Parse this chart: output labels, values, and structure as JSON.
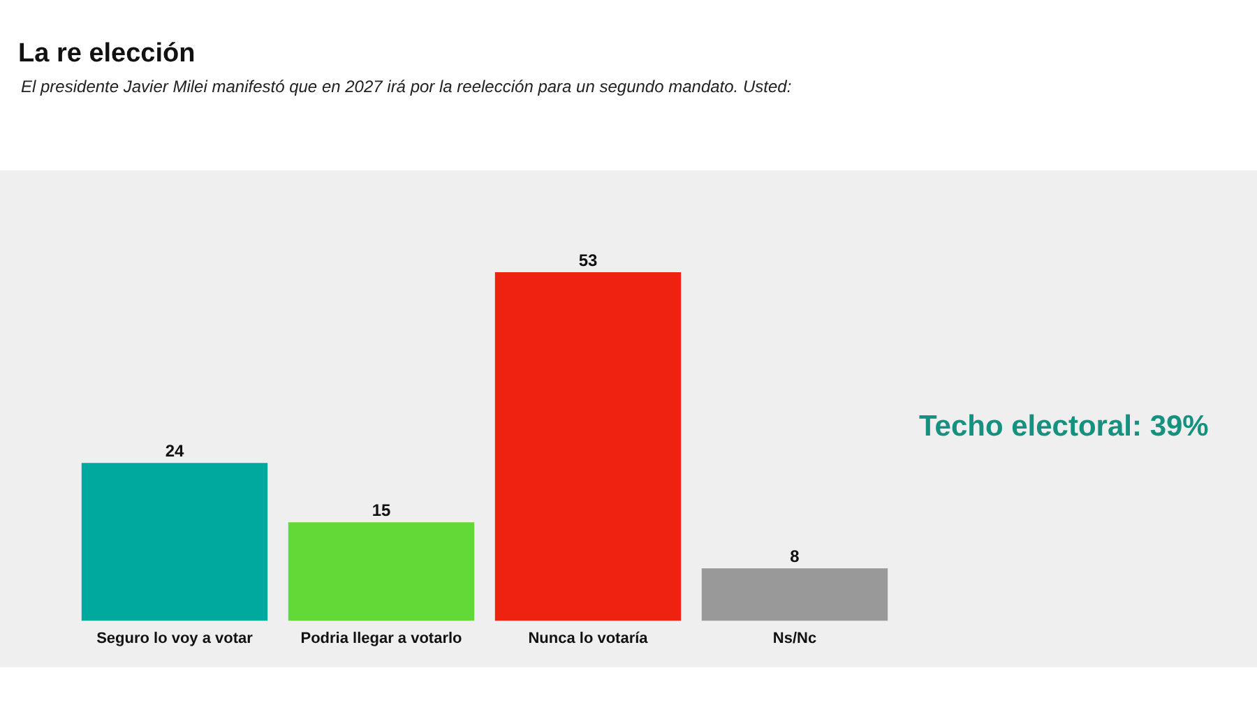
{
  "chart_data": {
    "type": "bar",
    "title": "La re elección",
    "subtitle": "El presidente Javier Milei manifestó que en 2027 irá por la reelección para un segundo mandato. Usted:",
    "categories": [
      "Seguro lo voy a votar",
      "Podria llegar a votarlo",
      "Nunca lo votaría",
      "Ns/Nc"
    ],
    "values": [
      24,
      15,
      53,
      8
    ],
    "colors": [
      "#00a99d",
      "#62d936",
      "#ee2211",
      "#999999"
    ],
    "data_labels": true,
    "grid": false,
    "legend": false,
    "annotations": [
      "Techo electoral: 39%"
    ]
  }
}
